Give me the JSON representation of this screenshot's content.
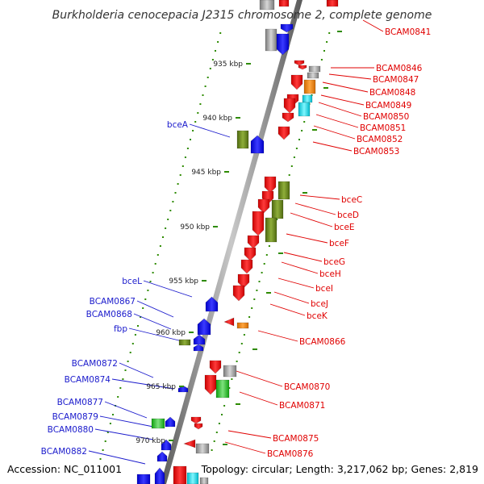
{
  "header": {
    "title": "Burkholderia cenocepacia J2315 chromosome 2, complete genome"
  },
  "footer": {
    "accession": "Accession: NC_011001",
    "topology": "Topology: circular; Length: 3,217,062 bp; Genes: 2,819"
  },
  "colors": {
    "forward_strand": "#e00000",
    "reverse_strand": "#1a1acc",
    "tick_green": "#2e8b00",
    "backbone": "#8c8c8c"
  },
  "kbp_markers": [
    "935 kbp",
    "940 kbp",
    "945 kbp",
    "950 kbp",
    "955 kbp",
    "960 kbp",
    "965 kbp",
    "970 kbp"
  ],
  "labels_right": [
    "BCAM0841",
    "BCAM0846",
    "BCAM0847",
    "BCAM0848",
    "BCAM0849",
    "BCAM0850",
    "BCAM0851",
    "BCAM0852",
    "BCAM0853",
    "bceC",
    "bceD",
    "bceE",
    "bceF",
    "bceG",
    "bceH",
    "bceI",
    "bceJ",
    "bceK",
    "BCAM0866",
    "BCAM0870",
    "BCAM0871",
    "BCAM0875",
    "BCAM0876"
  ],
  "labels_left": [
    "bceA",
    "bceL",
    "BCAM0867",
    "BCAM0868",
    "fbp",
    "BCAM0872",
    "BCAM0874",
    "BCAM0877",
    "BCAM0879",
    "BCAM0880",
    "BCAM0882"
  ]
}
